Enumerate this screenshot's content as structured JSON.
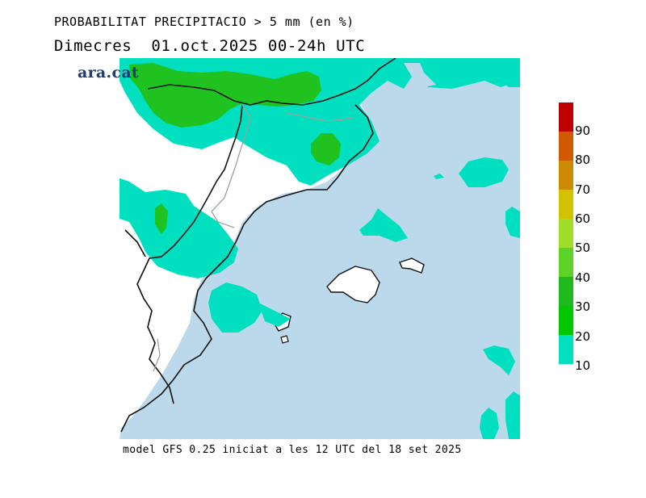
{
  "header": {
    "title": "PROBABILITAT PRECIPITACIO > 5 mm (en %)",
    "date_line": "Dimecres  01.oct.2025 00-24h UTC"
  },
  "logo": {
    "text": "ara.cat"
  },
  "footer": {
    "model_info": "model GFS 0.25 iniciat a les 12 UTC del 18 set 2025"
  },
  "colors": {
    "sea": "#bcd9eb",
    "land": "#ffffff",
    "prob_10": "#00e0c0",
    "prob_20": "#00c800",
    "prob_30": "#1fb91f",
    "prob_40": "#5fd22a",
    "prob_50": "#9ede2b",
    "prob_60": "#d2c300",
    "prob_70": "#cc8a00",
    "prob_80": "#d05a00",
    "prob_90": "#c00000",
    "border": "#111111",
    "region_border": "#a0a0a0"
  },
  "legend": {
    "labels": [
      "90",
      "80",
      "70",
      "60",
      "50",
      "40",
      "30",
      "20",
      "10"
    ]
  }
}
